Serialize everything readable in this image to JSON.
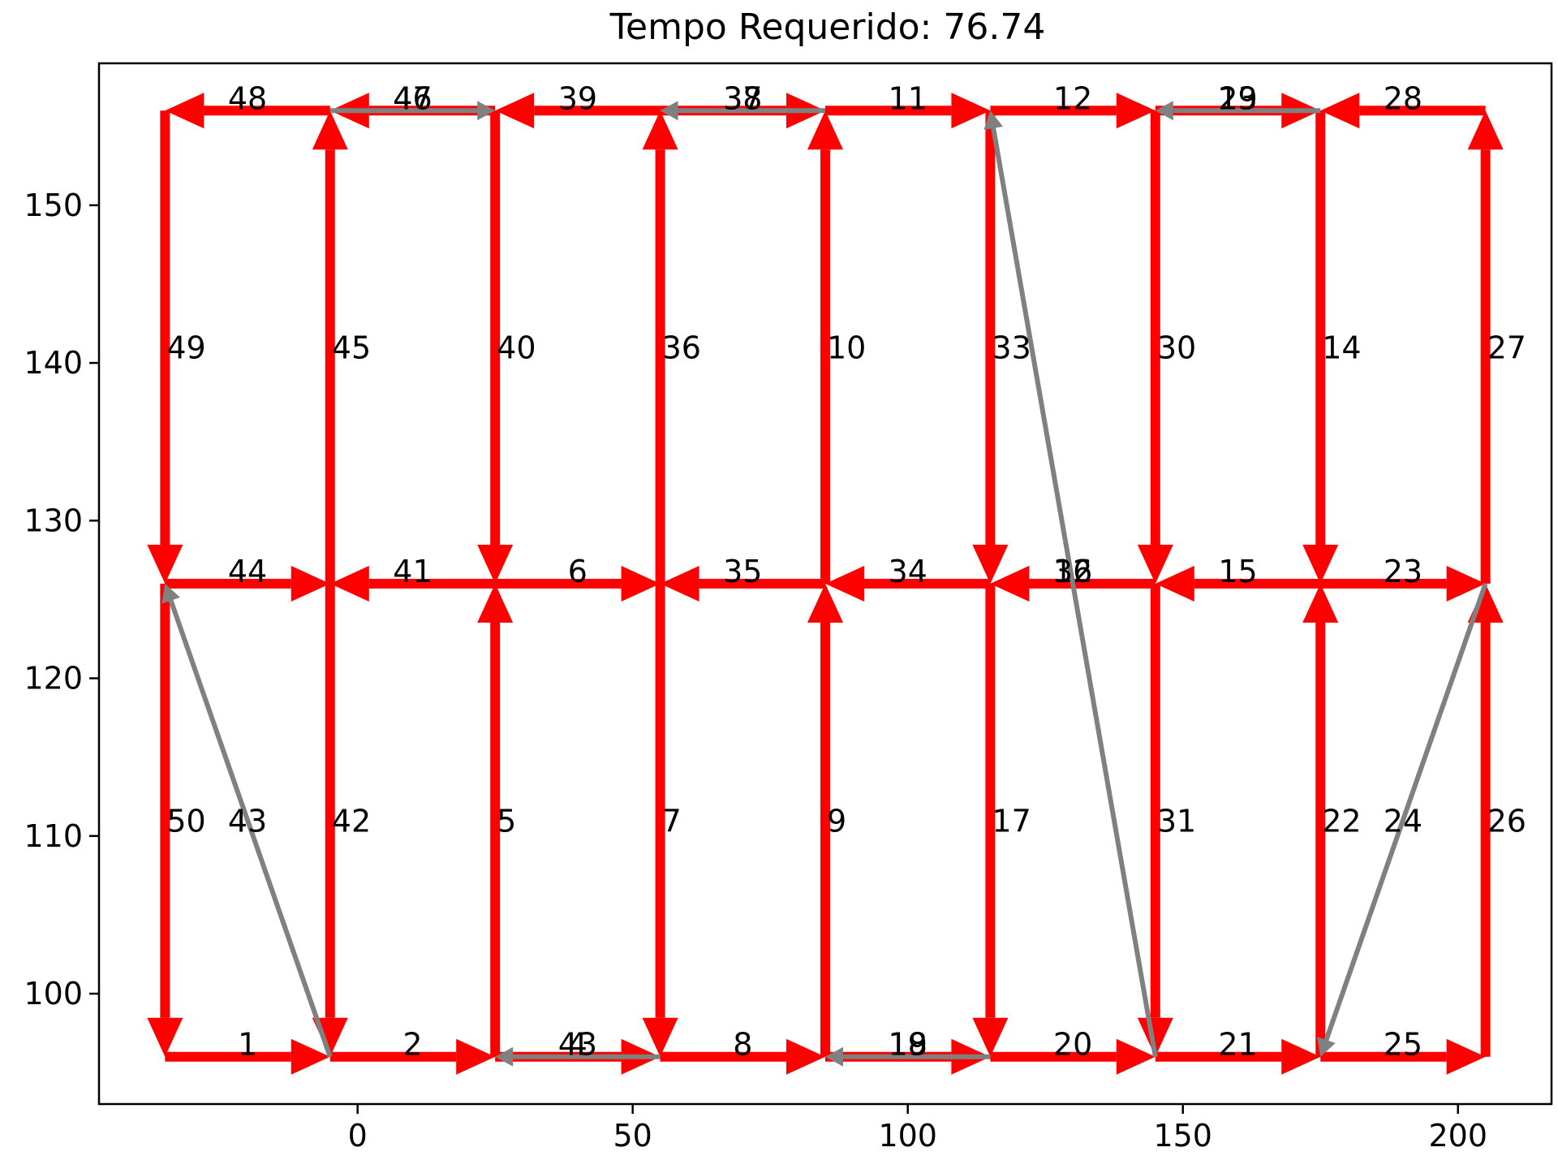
{
  "chart_data": {
    "type": "line",
    "title": "Tempo Requerido: 76.74",
    "xlabel": "",
    "ylabel": "",
    "xlim": [
      -47,
      217
    ],
    "ylim": [
      93,
      159
    ],
    "xticks": [
      0,
      50,
      100,
      150,
      200
    ],
    "yticks": [
      100,
      110,
      120,
      130,
      140,
      150
    ],
    "grid": false,
    "colors": {
      "required": "#ff0000",
      "deadhead": "#808080",
      "frame": "#000000"
    },
    "edges": [
      {
        "label": "1",
        "from": [
          -35,
          96
        ],
        "to": [
          -5,
          96
        ],
        "kind": "required"
      },
      {
        "label": "2",
        "from": [
          -5,
          96
        ],
        "to": [
          25,
          96
        ],
        "kind": "required"
      },
      {
        "label": "43",
        "from": [
          55,
          96
        ],
        "to": [
          25,
          96
        ],
        "kind": "deadhead"
      },
      {
        "label": "4",
        "from": [
          25,
          96
        ],
        "to": [
          55,
          96
        ],
        "kind": "required"
      },
      {
        "label": "8",
        "from": [
          55,
          96
        ],
        "to": [
          85,
          96
        ],
        "kind": "required"
      },
      {
        "label": "18",
        "from": [
          115,
          96
        ],
        "to": [
          85,
          96
        ],
        "kind": "deadhead"
      },
      {
        "label": "19",
        "from": [
          85,
          96
        ],
        "to": [
          115,
          96
        ],
        "kind": "required"
      },
      {
        "label": "20",
        "from": [
          115,
          96
        ],
        "to": [
          145,
          96
        ],
        "kind": "required"
      },
      {
        "label": "21",
        "from": [
          145,
          96
        ],
        "to": [
          175,
          96
        ],
        "kind": "required"
      },
      {
        "label": "25",
        "from": [
          175,
          96
        ],
        "to": [
          205,
          96
        ],
        "kind": "required"
      },
      {
        "label": "44",
        "from": [
          -35,
          126
        ],
        "to": [
          -5,
          126
        ],
        "kind": "required"
      },
      {
        "label": "41",
        "from": [
          25,
          126
        ],
        "to": [
          -5,
          126
        ],
        "kind": "required"
      },
      {
        "label": "6",
        "from": [
          25,
          126
        ],
        "to": [
          55,
          126
        ],
        "kind": "required"
      },
      {
        "label": "35",
        "from": [
          85,
          126
        ],
        "to": [
          55,
          126
        ],
        "kind": "required"
      },
      {
        "label": "34",
        "from": [
          115,
          126
        ],
        "to": [
          85,
          126
        ],
        "kind": "required"
      },
      {
        "label": "32",
        "from": [
          145,
          126
        ],
        "to": [
          115,
          126
        ],
        "kind": "required"
      },
      {
        "label": "16",
        "from": [
          145,
          126
        ],
        "to": [
          115,
          126
        ],
        "kind": "required"
      },
      {
        "label": "15",
        "from": [
          175,
          126
        ],
        "to": [
          145,
          126
        ],
        "kind": "required"
      },
      {
        "label": "23",
        "from": [
          175,
          126
        ],
        "to": [
          205,
          126
        ],
        "kind": "required"
      },
      {
        "label": "48",
        "from": [
          -5,
          156
        ],
        "to": [
          -35,
          156
        ],
        "kind": "required"
      },
      {
        "label": "46",
        "from": [
          25,
          156
        ],
        "to": [
          -5,
          156
        ],
        "kind": "required"
      },
      {
        "label": "47",
        "from": [
          -5,
          156
        ],
        "to": [
          25,
          156
        ],
        "kind": "deadhead"
      },
      {
        "label": "39",
        "from": [
          55,
          156
        ],
        "to": [
          25,
          156
        ],
        "kind": "required"
      },
      {
        "label": "38",
        "from": [
          85,
          156
        ],
        "to": [
          55,
          156
        ],
        "kind": "deadhead"
      },
      {
        "label": "37",
        "from": [
          55,
          156
        ],
        "to": [
          85,
          156
        ],
        "kind": "required"
      },
      {
        "label": "11",
        "from": [
          85,
          156
        ],
        "to": [
          115,
          156
        ],
        "kind": "required"
      },
      {
        "label": "12",
        "from": [
          115,
          156
        ],
        "to": [
          145,
          156
        ],
        "kind": "required"
      },
      {
        "label": "29",
        "from": [
          175,
          156
        ],
        "to": [
          145,
          156
        ],
        "kind": "deadhead"
      },
      {
        "label": "13",
        "from": [
          145,
          156
        ],
        "to": [
          175,
          156
        ],
        "kind": "required"
      },
      {
        "label": "28",
        "from": [
          205,
          156
        ],
        "to": [
          175,
          156
        ],
        "kind": "required"
      },
      {
        "label": "50",
        "from": [
          -35,
          126
        ],
        "to": [
          -35,
          96
        ],
        "kind": "required"
      },
      {
        "label": "49",
        "from": [
          -35,
          156
        ],
        "to": [
          -35,
          126
        ],
        "kind": "required"
      },
      {
        "label": "42",
        "from": [
          -5,
          126
        ],
        "to": [
          -5,
          96
        ],
        "kind": "required"
      },
      {
        "label": "45",
        "from": [
          -5,
          126
        ],
        "to": [
          -5,
          156
        ],
        "kind": "required"
      },
      {
        "label": "5",
        "from": [
          25,
          96
        ],
        "to": [
          25,
          126
        ],
        "kind": "required"
      },
      {
        "label": "40",
        "from": [
          25,
          156
        ],
        "to": [
          25,
          126
        ],
        "kind": "required"
      },
      {
        "label": "7",
        "from": [
          55,
          126
        ],
        "to": [
          55,
          96
        ],
        "kind": "required"
      },
      {
        "label": "36",
        "from": [
          55,
          126
        ],
        "to": [
          55,
          156
        ],
        "kind": "required"
      },
      {
        "label": "9",
        "from": [
          85,
          96
        ],
        "to": [
          85,
          126
        ],
        "kind": "required"
      },
      {
        "label": "10",
        "from": [
          85,
          126
        ],
        "to": [
          85,
          156
        ],
        "kind": "required"
      },
      {
        "label": "17",
        "from": [
          115,
          126
        ],
        "to": [
          115,
          96
        ],
        "kind": "required"
      },
      {
        "label": "33",
        "from": [
          115,
          156
        ],
        "to": [
          115,
          126
        ],
        "kind": "required"
      },
      {
        "label": "31",
        "from": [
          145,
          126
        ],
        "to": [
          145,
          96
        ],
        "kind": "required"
      },
      {
        "label": "30",
        "from": [
          145,
          156
        ],
        "to": [
          145,
          126
        ],
        "kind": "required"
      },
      {
        "label": "22",
        "from": [
          175,
          96
        ],
        "to": [
          175,
          126
        ],
        "kind": "required"
      },
      {
        "label": "14",
        "from": [
          175,
          156
        ],
        "to": [
          175,
          126
        ],
        "kind": "required"
      },
      {
        "label": "26",
        "from": [
          205,
          96
        ],
        "to": [
          205,
          126
        ],
        "kind": "required"
      },
      {
        "label": "27",
        "from": [
          205,
          126
        ],
        "to": [
          205,
          156
        ],
        "kind": "required"
      },
      {
        "label": "43",
        "from": [
          -5,
          96
        ],
        "to": [
          -35,
          126
        ],
        "kind": "deadhead"
      },
      {
        "label": "",
        "from": [
          145,
          96
        ],
        "to": [
          115,
          156
        ],
        "kind": "deadhead"
      },
      {
        "label": "24",
        "from": [
          205,
          126
        ],
        "to": [
          175,
          96
        ],
        "kind": "deadhead"
      }
    ]
  }
}
